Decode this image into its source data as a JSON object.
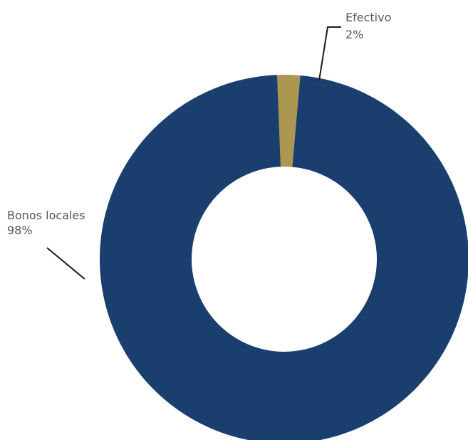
{
  "chart_data": {
    "type": "pie",
    "donut": true,
    "categories": [
      "Bonos locales",
      "Efectivo"
    ],
    "values": [
      98,
      2
    ],
    "value_labels": [
      "98%",
      "2%"
    ],
    "colors": [
      "#1a3e6e",
      "#ac9751"
    ],
    "legend": "none",
    "grid": false
  }
}
